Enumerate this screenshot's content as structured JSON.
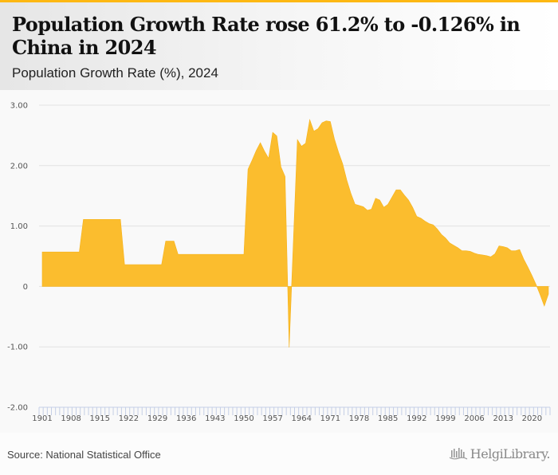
{
  "header": {
    "title": "Population Growth Rate rose 61.2% to -0.126% in China in 2024",
    "subtitle": "Population Growth Rate (%), 2024"
  },
  "footer": {
    "source": "Source: National Statistical Office",
    "brand": "HelgiLibrary."
  },
  "colors": {
    "accent": "#fdb813",
    "area_fill": "#fbbd2e",
    "grid": "#e2e2e2",
    "tick": "#c5cfe6"
  },
  "chart_data": {
    "type": "area",
    "title": "Population Growth Rate rose 61.2% to -0.126% in China in 2024",
    "subtitle": "Population Growth Rate (%), 2024",
    "xlabel": "",
    "ylabel": "",
    "ylim": [
      -2,
      3
    ],
    "yticks": [
      3,
      2,
      1,
      0,
      -1,
      -2
    ],
    "ytick_labels": [
      "3.00",
      "2.00",
      "1.00",
      "0",
      "-1.00",
      "-2.00"
    ],
    "xlim": [
      1901,
      2024
    ],
    "xtick_labels": [
      "1901",
      "1908",
      "1915",
      "1922",
      "1929",
      "1936",
      "1943",
      "1950",
      "1957",
      "1964",
      "1971",
      "1978",
      "1985",
      "1992",
      "1999",
      "2006",
      "2013",
      "2020"
    ],
    "grid": true,
    "legend": "none",
    "x_start": 1901,
    "series": [
      {
        "name": "Population Growth Rate (%)",
        "values": [
          0.57,
          0.57,
          0.57,
          0.57,
          0.57,
          0.57,
          0.57,
          0.57,
          0.57,
          0.57,
          1.11,
          1.11,
          1.11,
          1.11,
          1.11,
          1.11,
          1.11,
          1.11,
          1.11,
          1.11,
          0.36,
          0.36,
          0.36,
          0.36,
          0.36,
          0.36,
          0.36,
          0.36,
          0.36,
          0.36,
          0.75,
          0.75,
          0.75,
          0.53,
          0.53,
          0.53,
          0.53,
          0.53,
          0.53,
          0.53,
          0.53,
          0.53,
          0.53,
          0.53,
          0.53,
          0.53,
          0.53,
          0.53,
          0.53,
          0.53,
          1.94,
          2.09,
          2.25,
          2.38,
          2.24,
          2.12,
          2.55,
          2.49,
          1.98,
          1.82,
          -1.01,
          0.71,
          2.43,
          2.32,
          2.37,
          2.76,
          2.57,
          2.61,
          2.71,
          2.74,
          2.73,
          2.44,
          2.22,
          2.03,
          1.76,
          1.54,
          1.36,
          1.34,
          1.32,
          1.26,
          1.28,
          1.46,
          1.43,
          1.31,
          1.36,
          1.48,
          1.6,
          1.6,
          1.51,
          1.43,
          1.31,
          1.16,
          1.13,
          1.08,
          1.04,
          1.02,
          0.95,
          0.86,
          0.8,
          0.72,
          0.68,
          0.64,
          0.59,
          0.59,
          0.58,
          0.55,
          0.53,
          0.52,
          0.51,
          0.49,
          0.54,
          0.67,
          0.66,
          0.64,
          0.59,
          0.59,
          0.61,
          0.45,
          0.32,
          0.18,
          0.03,
          -0.14,
          -0.325,
          -0.126
        ]
      }
    ]
  }
}
